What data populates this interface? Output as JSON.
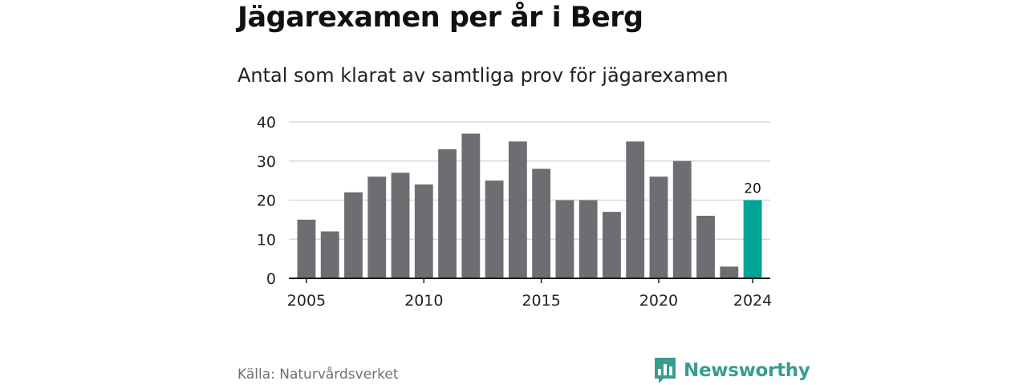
{
  "header": {
    "title": "Jägarexamen per år i Berg",
    "subtitle": "Antal som klarat av samtliga prov för jägarexamen"
  },
  "footer": {
    "source": "Källa: Naturvårdsverket",
    "brand": "Newsworthy",
    "brand_icon": "newsworthy-logo-icon"
  },
  "colors": {
    "bar": "#6e6d72",
    "highlight": "#00a396",
    "grid": "#d9d9d9",
    "axis": "#1a1a1a",
    "brand": "#3a9c8f"
  },
  "chart_data": {
    "type": "bar",
    "title": "Jägarexamen per år i Berg",
    "subtitle": "Antal som klarat av samtliga prov för jägarexamen",
    "xlabel": "",
    "ylabel": "",
    "x": [
      2005,
      2006,
      2007,
      2008,
      2009,
      2010,
      2011,
      2012,
      2013,
      2014,
      2015,
      2016,
      2017,
      2018,
      2019,
      2020,
      2021,
      2022,
      2023,
      2024
    ],
    "values": [
      15,
      12,
      22,
      26,
      27,
      24,
      33,
      37,
      25,
      35,
      28,
      20,
      20,
      17,
      35,
      26,
      30,
      16,
      3,
      20
    ],
    "ylim": [
      0,
      40
    ],
    "yticks": [
      0,
      10,
      20,
      30,
      40
    ],
    "xticks": [
      2005,
      2010,
      2015,
      2020,
      2024
    ],
    "highlight_x": 2024,
    "data_labels": [
      {
        "x": 2024,
        "label": "20"
      }
    ],
    "grid": true,
    "legend": "none"
  }
}
